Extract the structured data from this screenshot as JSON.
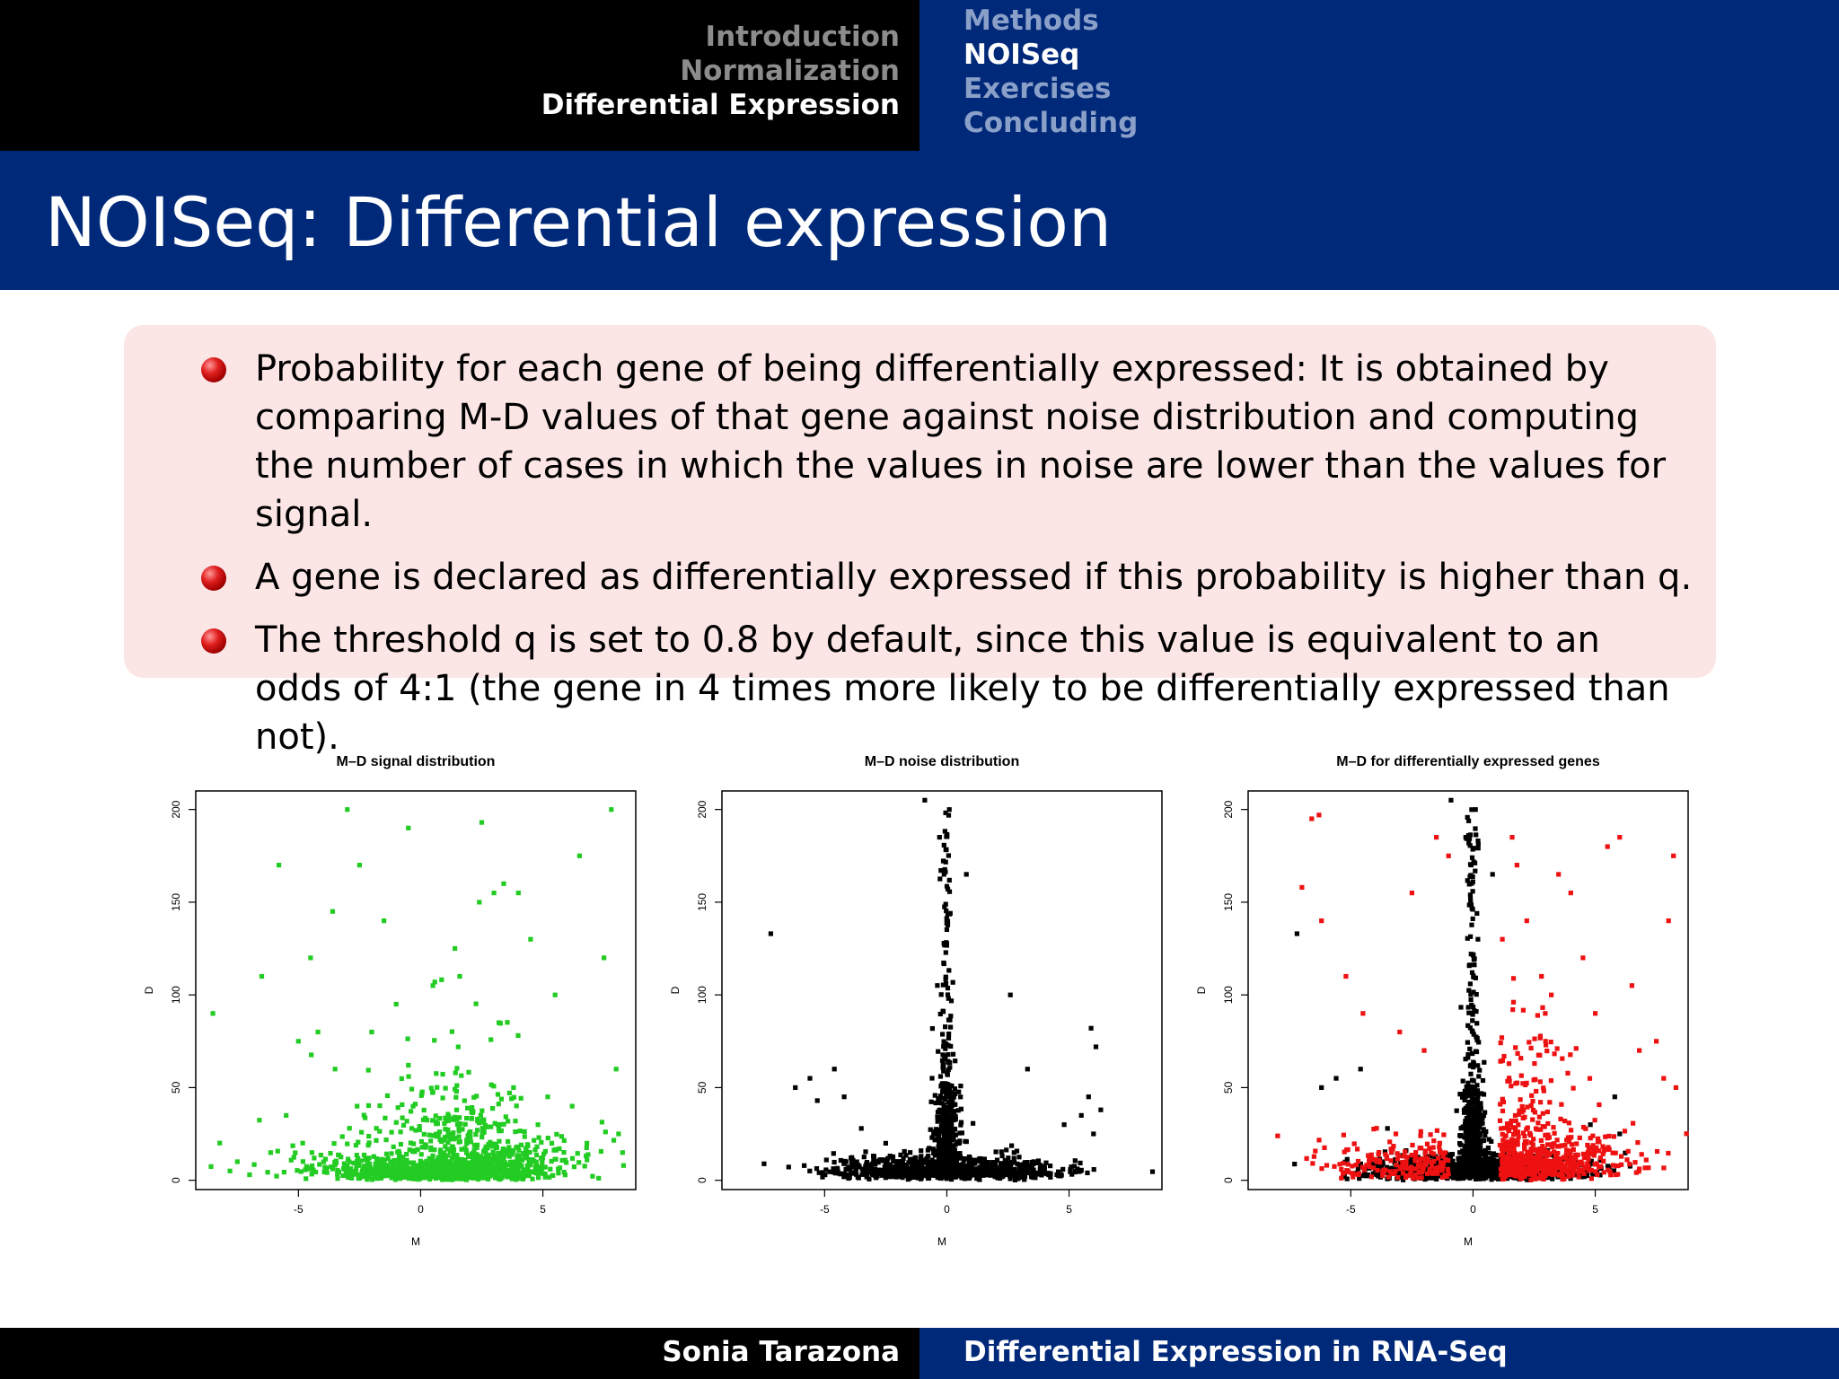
{
  "nav": {
    "sections": [
      {
        "label": "Introduction",
        "active": false
      },
      {
        "label": "Normalization",
        "active": false
      },
      {
        "label": "Differential Expression",
        "active": true
      }
    ],
    "subsections": [
      {
        "label": "Methods",
        "active": false
      },
      {
        "label": "NOISeq",
        "active": true
      },
      {
        "label": "Exercises",
        "active": false
      },
      {
        "label": "Concluding",
        "active": false
      }
    ]
  },
  "slide": {
    "title": "NOISeq: Differential expression",
    "bullets": [
      "Probability for each gene of being differentially expressed: It is obtained by comparing M-D values of that gene against noise distribution and computing the number of cases in which the values in noise are lower than the values for signal.",
      "A gene is declared as differentially expressed if this probability is higher than q.",
      "The threshold q is set to 0.8 by default, since this value is equivalent to an odds of 4:1 (the gene in 4 times more likely to be differentially expressed than not)."
    ]
  },
  "colors": {
    "dark": "#000000",
    "navy": "#00297a",
    "block_bg": "#fbe5e5",
    "signal": "#22cc22",
    "noise": "#000000",
    "de": "#ee1111"
  },
  "chart_data": [
    {
      "type": "scatter",
      "title": "M–D signal distribution",
      "xlabel": "M",
      "ylabel": "D",
      "xlim": [
        -9.2,
        8.8
      ],
      "ylim": [
        -5,
        210
      ],
      "xticks": [
        -5,
        0,
        5
      ],
      "yticks": [
        0,
        50,
        100,
        150,
        200
      ],
      "series": [
        {
          "points": [
            [
              -8.5,
              90
            ],
            [
              -6.5,
              110
            ],
            [
              -5.8,
              170
            ],
            [
              -4.5,
              120
            ],
            [
              -3.6,
              145
            ],
            [
              -3,
              200
            ],
            [
              -2.5,
              170
            ],
            [
              -1.5,
              140
            ],
            [
              -0.5,
              190
            ],
            [
              0.5,
              105
            ],
            [
              1.4,
              125
            ],
            [
              1.6,
              110
            ],
            [
              2.5,
              193
            ],
            [
              2.4,
              150
            ],
            [
              3,
              155
            ],
            [
              3.4,
              160
            ],
            [
              4,
              155
            ],
            [
              4.5,
              130
            ],
            [
              5.5,
              100
            ],
            [
              6.5,
              175
            ],
            [
              7.5,
              120
            ],
            [
              7.8,
              200
            ],
            [
              8,
              60
            ],
            [
              -5,
              75
            ],
            [
              -4.2,
              80
            ],
            [
              -2,
              80
            ],
            [
              -1,
              95
            ],
            [
              3.2,
              85
            ],
            [
              3.8,
              50
            ],
            [
              4.8,
              30
            ],
            [
              6.2,
              40
            ],
            [
              -7.5,
              10
            ],
            [
              -7.8,
              5
            ],
            [
              -7,
              3
            ],
            [
              8.3,
              8
            ],
            [
              8.1,
              25
            ],
            [
              -5.5,
              35
            ],
            [
              -3.5,
              60
            ],
            [
              -2.6,
              40
            ],
            [
              5.2,
              45
            ],
            [
              6.8,
              20
            ]
          ]
        }
      ],
      "legend": "none"
    },
    {
      "type": "scatter",
      "title": "M–D noise distribution",
      "xlabel": "M",
      "ylabel": "D",
      "xlim": [
        -9.2,
        8.8
      ],
      "ylim": [
        -5,
        210
      ],
      "xticks": [
        -5,
        0,
        5
      ],
      "yticks": [
        0,
        50,
        100,
        150,
        200
      ],
      "series": [
        {
          "points": [
            [
              -7.2,
              133
            ],
            [
              -6.2,
              50
            ],
            [
              -5.6,
              55
            ],
            [
              -5.3,
              43
            ],
            [
              -4.6,
              60
            ],
            [
              -4.2,
              45
            ],
            [
              -3.5,
              28
            ],
            [
              -2.5,
              20
            ],
            [
              -1.5,
              15
            ],
            [
              -0.9,
              205
            ],
            [
              0.1,
              200
            ],
            [
              -0.3,
              185
            ],
            [
              0.8,
              165
            ],
            [
              2.6,
              100
            ],
            [
              3.3,
              60
            ],
            [
              4.8,
              30
            ],
            [
              5.5,
              35
            ],
            [
              5.8,
              45
            ],
            [
              5.9,
              82
            ],
            [
              6.1,
              72
            ],
            [
              6,
              25
            ],
            [
              6.3,
              38
            ]
          ]
        }
      ],
      "legend": "none"
    },
    {
      "type": "scatter",
      "title": "M–D for differentially expressed genes",
      "xlabel": "M",
      "ylabel": "D",
      "xlim": [
        -9.2,
        8.8
      ],
      "ylim": [
        -5,
        210
      ],
      "xticks": [
        -5,
        0,
        5
      ],
      "yticks": [
        0,
        50,
        100,
        150,
        200
      ],
      "series": [
        {
          "points": [
            [
              -7.2,
              133
            ],
            [
              -6.2,
              50
            ],
            [
              -5.6,
              55
            ],
            [
              -4.6,
              60
            ],
            [
              -3.5,
              28
            ],
            [
              -0.9,
              205
            ],
            [
              0.1,
              200
            ],
            [
              -0.3,
              185
            ],
            [
              0.8,
              165
            ],
            [
              -0.1,
              150
            ],
            [
              0.2,
              130
            ],
            [
              5.8,
              45
            ],
            [
              6,
              25
            ],
            [
              4.8,
              30
            ]
          ]
        },
        {
          "points": [
            [
              -6.6,
              195
            ],
            [
              -6.3,
              197
            ],
            [
              -7,
              158
            ],
            [
              -6.2,
              140
            ],
            [
              -5.2,
              110
            ],
            [
              -4.5,
              90
            ],
            [
              -2.5,
              155
            ],
            [
              -1.5,
              185
            ],
            [
              -1,
              175
            ],
            [
              1.6,
              185
            ],
            [
              1.8,
              170
            ],
            [
              2.2,
              140
            ],
            [
              3.5,
              165
            ],
            [
              4,
              155
            ],
            [
              5.5,
              180
            ],
            [
              6,
              185
            ],
            [
              8.2,
              175
            ],
            [
              8,
              140
            ],
            [
              6.5,
              105
            ],
            [
              6.8,
              70
            ],
            [
              7.5,
              75
            ],
            [
              7.8,
              55
            ],
            [
              8.3,
              50
            ],
            [
              1.2,
              130
            ],
            [
              2.8,
              110
            ],
            [
              3.2,
              100
            ],
            [
              4.5,
              120
            ],
            [
              5,
              90
            ],
            [
              -3,
              80
            ],
            [
              -2,
              70
            ]
          ]
        }
      ],
      "legend": "none"
    }
  ],
  "footer": {
    "author": "Sonia Tarazona",
    "talk": "Differential Expression in RNA-Seq"
  }
}
